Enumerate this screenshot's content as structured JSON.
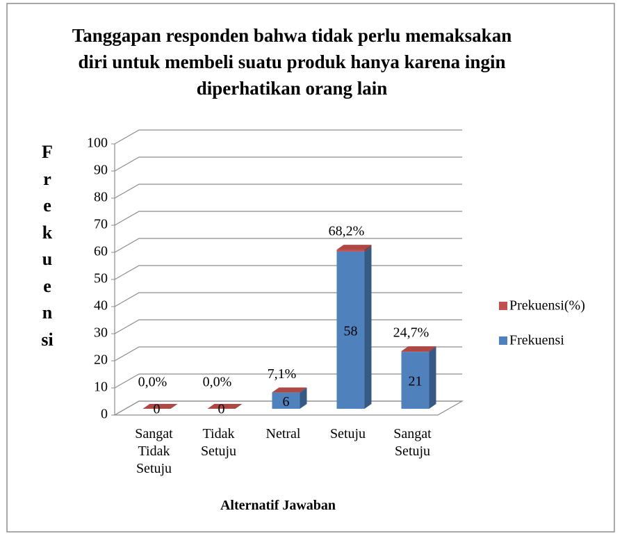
{
  "chart_data": {
    "type": "bar3d_stacked",
    "title": "Tanggapan responden  bahwa tidak perlu memaksakan diri untuk membeli suatu produk hanya karena ingin diperhatikan orang lain",
    "x_label": "Alternatif Jawaban",
    "y_label": "Frekuensi",
    "categories": [
      "Sangat Tidak Setuju",
      "Tidak Setuju",
      "Netral",
      "Setuju",
      "Sangat Setuju"
    ],
    "series": [
      {
        "name": "Frekuensi",
        "color": "#4f81bd",
        "values": [
          0,
          0,
          6,
          58,
          21
        ]
      },
      {
        "name": "Prekuensi(%)",
        "color": "#c0504d",
        "values": [
          0,
          0,
          0.071,
          0.682,
          0.247
        ],
        "value_labels": [
          "0,0%",
          "0,0%",
          "7,1%",
          "68,2%",
          "24,7%"
        ]
      }
    ],
    "ylim": [
      0,
      100
    ],
    "yticks": [
      0,
      10,
      20,
      30,
      40,
      50,
      60,
      70,
      80,
      90,
      100
    ],
    "grid": true,
    "legend": "right"
  }
}
